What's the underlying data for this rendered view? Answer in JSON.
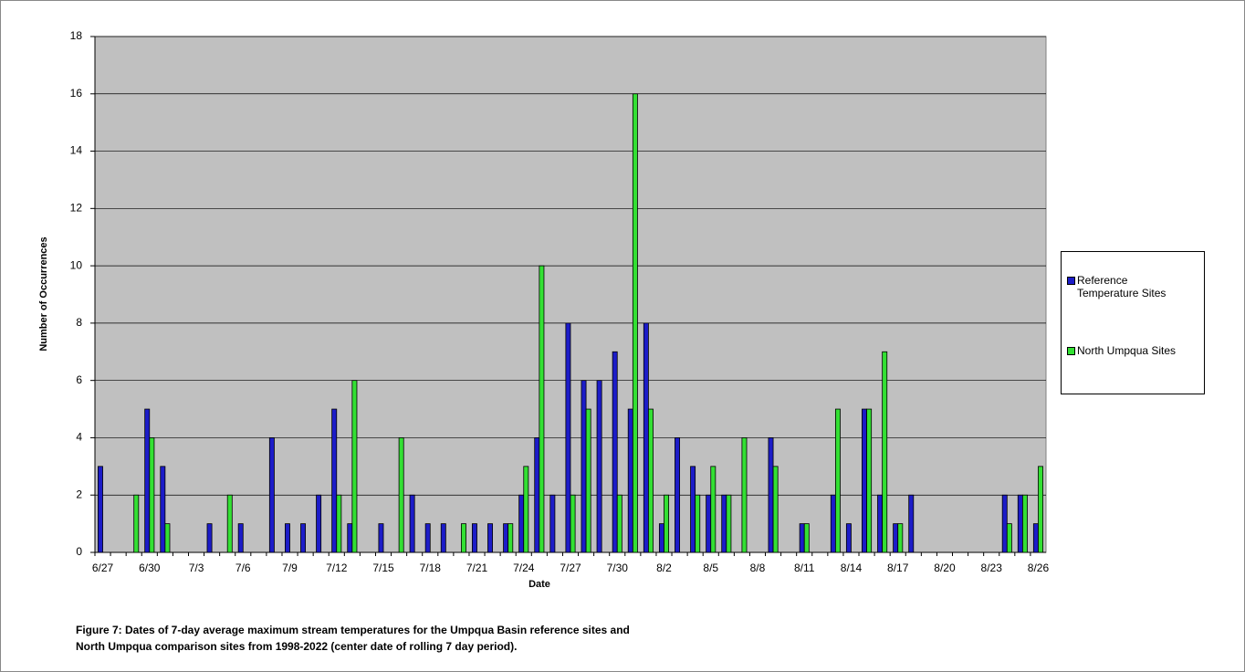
{
  "chart_data": {
    "type": "bar",
    "x_label": "Date",
    "y_label": "Number of Occurrences",
    "caption": [
      "Figure 7:  Dates of 7-day average maximum stream temperatures for the Umpqua Basin reference sites and",
      "North Umpqua comparison sites from 1998-2022 (center date of rolling 7 day period)."
    ],
    "categories": [
      "6/27",
      null,
      null,
      "6/30",
      null,
      null,
      "7/3",
      null,
      null,
      "7/6",
      null,
      null,
      "7/9",
      null,
      null,
      "7/12",
      null,
      null,
      "7/15",
      null,
      null,
      "7/18",
      null,
      null,
      "7/21",
      null,
      null,
      "7/24",
      null,
      null,
      "7/27",
      null,
      null,
      "7/30",
      null,
      null,
      "8/2",
      null,
      null,
      "8/5",
      null,
      null,
      "8/8",
      null,
      null,
      "8/11",
      null,
      null,
      "8/14",
      null,
      null,
      "8/17",
      null,
      null,
      "8/20",
      null,
      null,
      "8/23",
      null,
      null,
      "8/26"
    ],
    "series": [
      {
        "name": "Reference Temperature Sites",
        "color": "#1c1cc8",
        "values": [
          3,
          0,
          0,
          5,
          3,
          0,
          0,
          1,
          0,
          1,
          0,
          4,
          1,
          1,
          2,
          5,
          1,
          0,
          1,
          0,
          2,
          1,
          1,
          0,
          1,
          1,
          1,
          2,
          4,
          2,
          8,
          6,
          6,
          7,
          5,
          8,
          1,
          4,
          3,
          2,
          2,
          0,
          0,
          4,
          0,
          1,
          0,
          2,
          1,
          5,
          2,
          1,
          2,
          0,
          0,
          0,
          0,
          0,
          2,
          2,
          1
        ]
      },
      {
        "name": "North Umpqua Sites",
        "color": "#33e033",
        "values": [
          0,
          0,
          2,
          4,
          1,
          0,
          0,
          0,
          2,
          0,
          0,
          0,
          0,
          0,
          0,
          2,
          6,
          0,
          0,
          4,
          0,
          0,
          0,
          1,
          0,
          0,
          1,
          3,
          10,
          0,
          2,
          5,
          0,
          2,
          16,
          5,
          2,
          0,
          2,
          3,
          2,
          4,
          0,
          3,
          0,
          1,
          0,
          5,
          0,
          5,
          7,
          1,
          0,
          0,
          0,
          0,
          0,
          0,
          1,
          2,
          3
        ]
      }
    ],
    "ylim": [
      0,
      18
    ],
    "yticks": [
      0,
      2,
      4,
      6,
      8,
      10,
      12,
      14,
      16,
      18
    ],
    "grid": true
  }
}
